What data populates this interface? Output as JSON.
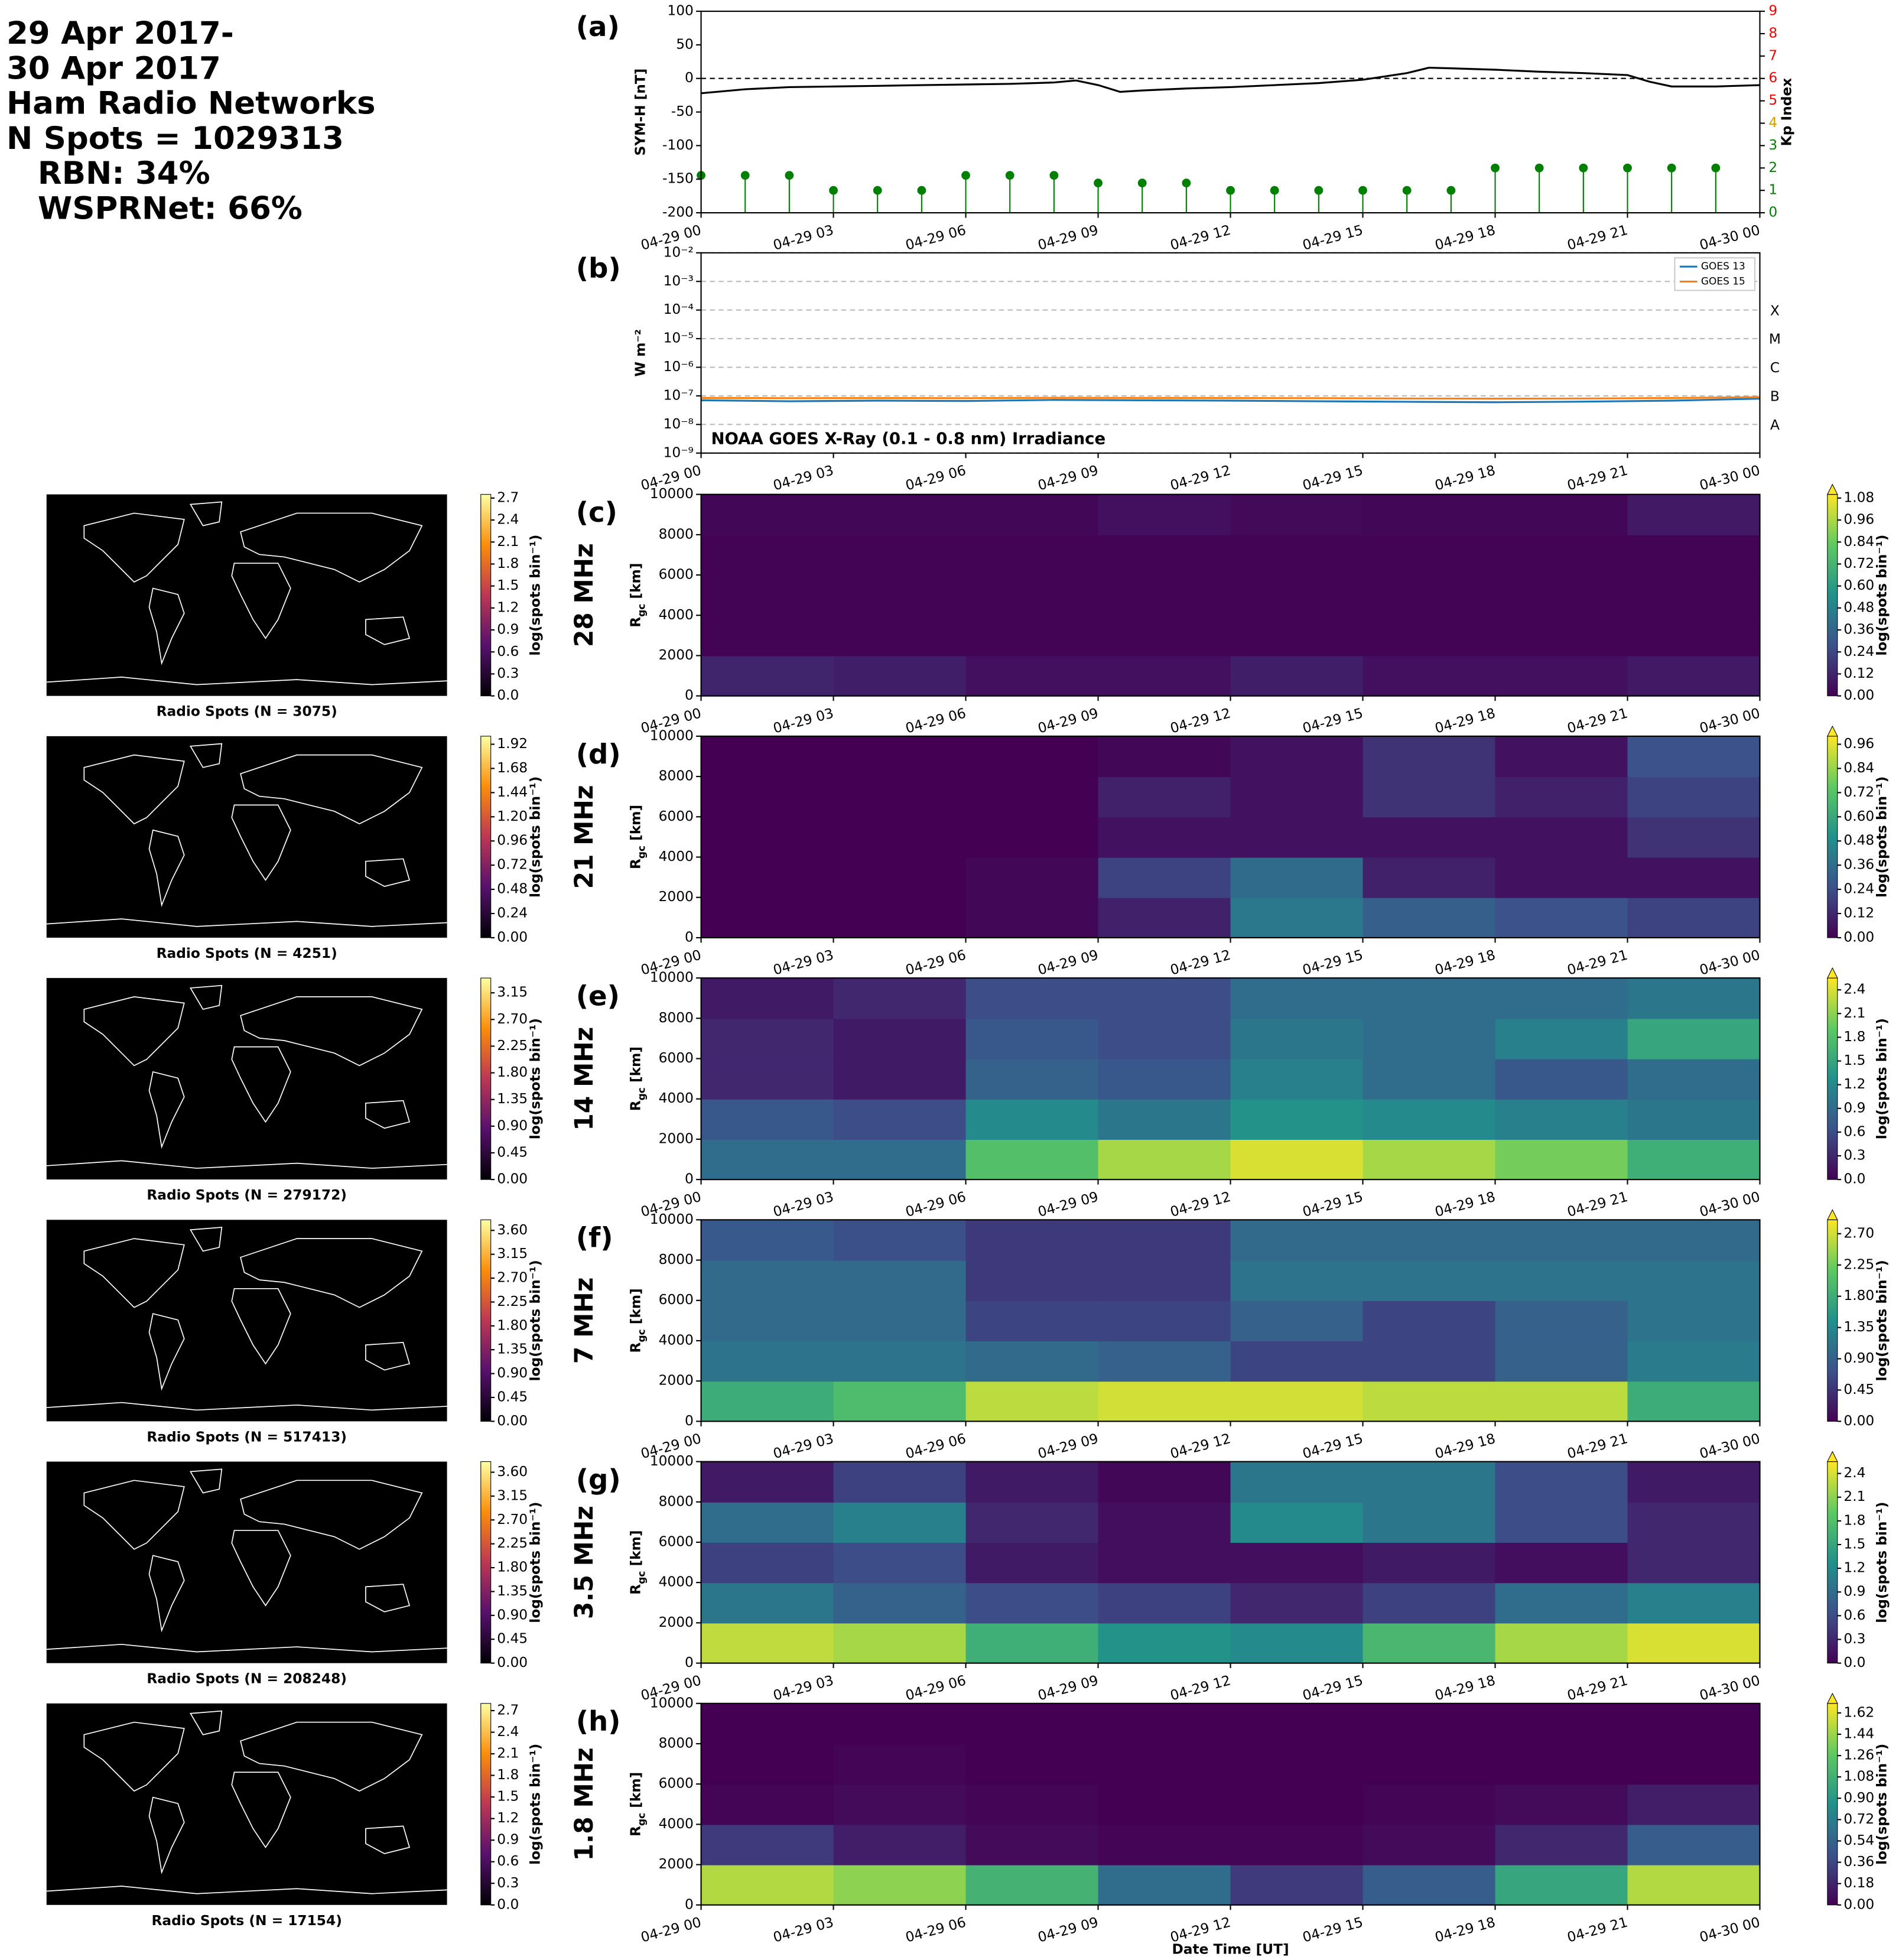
{
  "title_lines": [
    "29 Apr 2017-",
    "30 Apr 2017",
    "Ham Radio Networks",
    "N Spots = 1029313",
    "RBN: 34%",
    "WSPRNet: 66%"
  ],
  "time_axis": {
    "xlim": [
      0,
      24
    ],
    "xticks": [
      {
        "value": 0,
        "label": "04-29 00"
      },
      {
        "value": 3,
        "label": "04-29 03"
      },
      {
        "value": 6,
        "label": "04-29 06"
      },
      {
        "value": 9,
        "label": "04-29 09"
      },
      {
        "value": 12,
        "label": "04-29 12"
      },
      {
        "value": 15,
        "label": "04-29 15"
      },
      {
        "value": 18,
        "label": "04-29 18"
      },
      {
        "value": 21,
        "label": "04-29 21"
      },
      {
        "value": 24,
        "label": "04-30 00"
      }
    ]
  },
  "chart_data": [
    {
      "type": "line",
      "panel_label": "(a)",
      "ylabel": "SYM-H [nT]",
      "y2label": "Kp Index",
      "ylim": [
        -200,
        100
      ],
      "yticks": [
        -200,
        -150,
        -100,
        -50,
        0,
        50,
        100
      ],
      "y2lim": [
        0,
        9
      ],
      "y2ticks": [
        0,
        1,
        2,
        3,
        4,
        5,
        6,
        7,
        8,
        9
      ],
      "y2tick_colors": [
        "#008000",
        "#008000",
        "#008000",
        "#008000",
        "#d4a000",
        "#ff0000",
        "#ff0000",
        "#ff0000",
        "#ff0000",
        "#ff0000"
      ],
      "hline": 0,
      "series": [
        {
          "color": "#000000",
          "x": [
            0,
            1,
            2,
            3,
            4,
            5,
            6,
            7,
            8,
            8.5,
            9,
            9.5,
            10,
            11,
            12,
            13,
            14,
            15,
            16,
            16.5,
            17,
            18,
            19,
            20,
            21,
            21.5,
            22,
            23,
            24
          ],
          "values": [
            -22,
            -16,
            -13,
            -12,
            -11,
            -10,
            -9,
            -8,
            -6,
            -3,
            -10,
            -20,
            -18,
            -15,
            -13,
            -10,
            -7,
            -2,
            8,
            16,
            15,
            13,
            10,
            8,
            5,
            -5,
            -12,
            -12,
            -10
          ]
        },
        {
          "type": "stem",
          "axis": "y2",
          "color": "#008000",
          "x": [
            0,
            1,
            2,
            3,
            4,
            5,
            6,
            7,
            8,
            9,
            10,
            11,
            12,
            13,
            14,
            15,
            16,
            17,
            18,
            19,
            20,
            21,
            22,
            23
          ],
          "values": [
            1.67,
            1.67,
            1.67,
            1,
            1,
            1,
            1.67,
            1.67,
            1.67,
            1.33,
            1.33,
            1.33,
            1,
            1,
            1,
            1,
            1,
            1,
            2,
            2,
            2,
            2,
            2,
            2
          ]
        }
      ]
    },
    {
      "type": "line",
      "panel_label": "(b)",
      "ylabel": "W m⁻²",
      "log_scale": true,
      "grid": true,
      "legend": "upper right",
      "ylim": [
        1e-09,
        0.01
      ],
      "yticks": [
        {
          "value": 1e-09,
          "label": "10⁻⁹"
        },
        {
          "value": 1e-08,
          "label": "10⁻⁸"
        },
        {
          "value": 1e-07,
          "label": "10⁻⁷"
        },
        {
          "value": 1e-06,
          "label": "10⁻⁶"
        },
        {
          "value": 1e-05,
          "label": "10⁻⁵"
        },
        {
          "value": 0.0001,
          "label": "10⁻⁴"
        },
        {
          "value": 0.001,
          "label": "10⁻³"
        },
        {
          "value": 0.01,
          "label": "10⁻²"
        }
      ],
      "flare_classes": [
        {
          "value": 0.0001,
          "label": "X"
        },
        {
          "value": 1e-05,
          "label": "M"
        },
        {
          "value": 1e-06,
          "label": "C"
        },
        {
          "value": 1e-07,
          "label": "B"
        },
        {
          "value": 1e-08,
          "label": "A"
        }
      ],
      "annotation": "NOAA GOES X-Ray (0.1 - 0.8 nm) Irradiance",
      "series": [
        {
          "name": "GOES 13",
          "color": "#1f77b4",
          "x": [
            0,
            2,
            4,
            6,
            8,
            10,
            12,
            14,
            16,
            18,
            20,
            22,
            24
          ],
          "values": [
            7e-08,
            6.5e-08,
            6.8e-08,
            6.6e-08,
            7.2e-08,
            7e-08,
            6.8e-08,
            6.5e-08,
            6.2e-08,
            6e-08,
            6.3e-08,
            6.8e-08,
            8e-08
          ]
        },
        {
          "name": "GOES 15",
          "color": "#ff7f0e",
          "x": [
            0,
            2,
            4,
            6,
            8,
            10,
            12,
            14,
            16,
            18,
            20,
            22,
            24
          ],
          "values": [
            8.5e-08,
            8.3e-08,
            8.4e-08,
            8.3e-08,
            8.6e-08,
            8.5e-08,
            8.4e-08,
            8.3e-08,
            8.1e-08,
            8e-08,
            8.1e-08,
            8.4e-08,
            9e-08
          ]
        }
      ]
    },
    {
      "type": "heatmap",
      "panel_label": "(c)",
      "band": "28 MHz",
      "ylabel": [
        "R",
        "gc",
        " [km]"
      ],
      "ylim": [
        0,
        10000
      ],
      "yticks": [
        0,
        2000,
        4000,
        6000,
        8000,
        10000
      ],
      "colormap": [
        "#440154",
        "#3b528b",
        "#21918c",
        "#5ec962",
        "#fde725"
      ],
      "extend": "max",
      "clim": [
        0,
        1.1
      ],
      "clabel": "log(spots bin⁻¹)",
      "cticks": [
        {
          "value": 0,
          "label": "0.00"
        },
        0.12,
        0.24,
        0.36,
        0.48,
        {
          "value": 0.6,
          "label": "0.60"
        },
        0.72,
        0.84,
        0.96,
        1.08
      ],
      "z": [
        [
          0.12,
          0.1,
          0.05,
          0.05,
          0.1,
          0.05,
          0.05,
          0.08
        ],
        [
          0.01,
          0.01,
          0.01,
          0.01,
          0.01,
          0.01,
          0.01,
          0.01
        ],
        [
          0.01,
          0.01,
          0.01,
          0.01,
          0.01,
          0.01,
          0.01,
          0.01
        ],
        [
          0.01,
          0.01,
          0.01,
          0.01,
          0.01,
          0.01,
          0.01,
          0.01
        ],
        [
          0.02,
          0.02,
          0.02,
          0.05,
          0.03,
          0.02,
          0.02,
          0.08
        ]
      ],
      "map": {
        "title": "Radio Spots (N = 3075)",
        "colormap": [
          "#000004",
          "#57106e",
          "#bc3754",
          "#f98e09",
          "#fcffa4"
        ],
        "clim": [
          0,
          2.75
        ],
        "clabel": "log(spots bin⁻¹)",
        "cticks": [
          {
            "value": 0,
            "label": "0.0"
          },
          0.3,
          0.6,
          0.9,
          1.2,
          1.5,
          1.8,
          2.1,
          2.4,
          2.7
        ]
      }
    },
    {
      "type": "heatmap",
      "panel_label": "(d)",
      "band": "21 MHz",
      "ylabel": [
        "R",
        "gc",
        " [km]"
      ],
      "ylim": [
        0,
        10000
      ],
      "yticks": [
        0,
        2000,
        4000,
        6000,
        8000,
        10000
      ],
      "colormap": [
        "#440154",
        "#3b528b",
        "#21918c",
        "#5ec962",
        "#fde725"
      ],
      "extend": "max",
      "clim": [
        0,
        1.0
      ],
      "clabel": "log(spots bin⁻¹)",
      "cticks": [
        {
          "value": 0,
          "label": "0.00"
        },
        0.12,
        0.24,
        0.36,
        0.48,
        {
          "value": 0.6,
          "label": "0.60"
        },
        0.72,
        0.84,
        0.96
      ],
      "z": [
        [
          0,
          0,
          0.02,
          0.1,
          0.4,
          0.3,
          0.25,
          0.2
        ],
        [
          0,
          0,
          0.02,
          0.2,
          0.35,
          0.1,
          0.05,
          0.05
        ],
        [
          0,
          0,
          0,
          0.05,
          0.05,
          0.05,
          0.05,
          0.15
        ],
        [
          0,
          0,
          0,
          0.1,
          0.05,
          0.15,
          0.1,
          0.2
        ],
        [
          0,
          0,
          0,
          0.02,
          0.05,
          0.15,
          0.05,
          0.25
        ]
      ],
      "map": {
        "title": "Radio Spots (N = 4251)",
        "colormap": [
          "#000004",
          "#57106e",
          "#bc3754",
          "#f98e09",
          "#fcffa4"
        ],
        "clim": [
          0,
          2.0
        ],
        "clabel": "log(spots bin⁻¹)",
        "cticks": [
          {
            "value": 0,
            "label": "0.00"
          },
          0.24,
          0.48,
          0.72,
          0.96,
          {
            "value": 1.2,
            "label": "1.20"
          },
          1.44,
          1.68,
          1.92
        ]
      }
    },
    {
      "type": "heatmap",
      "panel_label": "(e)",
      "band": "14 MHz",
      "ylabel": [
        "R",
        "gc",
        " [km]"
      ],
      "ylim": [
        0,
        10000
      ],
      "yticks": [
        0,
        2000,
        4000,
        6000,
        8000,
        10000
      ],
      "colormap": [
        "#440154",
        "#3b528b",
        "#21918c",
        "#5ec962",
        "#fde725"
      ],
      "extend": "max",
      "clim": [
        0,
        2.55
      ],
      "clabel": "log(spots bin⁻¹)",
      "cticks": [
        {
          "value": 0,
          "label": "0.0"
        },
        0.3,
        0.6,
        0.9,
        1.2,
        1.5,
        1.8,
        2.1,
        2.4
      ],
      "z": [
        [
          0.9,
          0.9,
          1.8,
          2.2,
          2.4,
          2.2,
          2.0,
          1.6
        ],
        [
          0.7,
          0.6,
          1.2,
          1.0,
          1.3,
          1.2,
          1.1,
          1.0
        ],
        [
          0.3,
          0.2,
          0.8,
          0.7,
          1.1,
          0.9,
          0.7,
          0.9
        ],
        [
          0.3,
          0.2,
          0.7,
          0.6,
          1.0,
          0.9,
          1.1,
          1.5
        ],
        [
          0.2,
          0.3,
          0.6,
          0.6,
          0.9,
          0.9,
          0.9,
          1.0
        ]
      ],
      "map": {
        "title": "Radio Spots (N = 279172)",
        "colormap": [
          "#000004",
          "#57106e",
          "#bc3754",
          "#f98e09",
          "#fcffa4"
        ],
        "clim": [
          0,
          3.4
        ],
        "clabel": "log(spots bin⁻¹)",
        "cticks": [
          {
            "value": 0,
            "label": "0.00"
          },
          0.45,
          {
            "value": 0.9,
            "label": "0.90"
          },
          1.35,
          {
            "value": 1.8,
            "label": "1.80"
          },
          2.25,
          {
            "value": 2.7,
            "label": "2.70"
          },
          3.15
        ]
      }
    },
    {
      "type": "heatmap",
      "panel_label": "(f)",
      "band": "7 MHz",
      "ylabel": [
        "R",
        "gc",
        " [km]"
      ],
      "ylim": [
        0,
        10000
      ],
      "yticks": [
        0,
        2000,
        4000,
        6000,
        8000,
        10000
      ],
      "colormap": [
        "#440154",
        "#3b528b",
        "#21918c",
        "#5ec962",
        "#fde725"
      ],
      "extend": "max",
      "clim": [
        0,
        2.9
      ],
      "clabel": "log(spots bin⁻¹)",
      "cticks": [
        {
          "value": 0,
          "label": "0.00"
        },
        0.45,
        {
          "value": 0.9,
          "label": "0.90"
        },
        1.35,
        {
          "value": 1.8,
          "label": "1.80"
        },
        2.25,
        {
          "value": 2.7,
          "label": "2.70"
        }
      ],
      "z": [
        [
          1.8,
          2.0,
          2.6,
          2.7,
          2.7,
          2.6,
          2.6,
          1.8
        ],
        [
          1.1,
          1.1,
          1.0,
          0.9,
          0.6,
          0.6,
          0.9,
          1.2
        ],
        [
          1.0,
          1.0,
          0.6,
          0.6,
          0.9,
          0.6,
          0.9,
          1.1
        ],
        [
          1.0,
          1.0,
          0.5,
          0.5,
          1.1,
          1.1,
          1.1,
          1.1
        ],
        [
          0.8,
          0.7,
          0.5,
          0.5,
          1.0,
          1.0,
          1.0,
          1.0
        ]
      ],
      "map": {
        "title": "Radio Spots (N = 517413)",
        "colormap": [
          "#000004",
          "#57106e",
          "#bc3754",
          "#f98e09",
          "#fcffa4"
        ],
        "clim": [
          0,
          3.8
        ],
        "clabel": "log(spots bin⁻¹)",
        "cticks": [
          {
            "value": 0,
            "label": "0.00"
          },
          0.45,
          {
            "value": 0.9,
            "label": "0.90"
          },
          1.35,
          {
            "value": 1.8,
            "label": "1.80"
          },
          2.25,
          {
            "value": 2.7,
            "label": "2.70"
          },
          3.15,
          {
            "value": 3.6,
            "label": "3.60"
          }
        ]
      }
    },
    {
      "type": "heatmap",
      "panel_label": "(g)",
      "band": "3.5 MHz",
      "ylabel": [
        "R",
        "gc",
        " [km]"
      ],
      "ylim": [
        0,
        10000
      ],
      "yticks": [
        0,
        2000,
        4000,
        6000,
        8000,
        10000
      ],
      "colormap": [
        "#440154",
        "#3b528b",
        "#21918c",
        "#5ec962",
        "#fde725"
      ],
      "extend": "max",
      "clim": [
        0,
        2.55
      ],
      "clabel": "log(spots bin⁻¹)",
      "cticks": [
        {
          "value": 0,
          "label": "0.0"
        },
        0.3,
        0.6,
        0.9,
        1.2,
        1.5,
        1.8,
        2.1,
        2.4
      ],
      "z": [
        [
          2.3,
          2.2,
          1.6,
          1.3,
          1.2,
          1.7,
          2.2,
          2.4
        ],
        [
          1.0,
          0.8,
          0.6,
          0.5,
          0.3,
          0.5,
          0.9,
          1.1
        ],
        [
          0.5,
          0.6,
          0.2,
          0.1,
          0.1,
          0.2,
          0.1,
          0.3
        ],
        [
          0.9,
          1.1,
          0.3,
          0.1,
          1.2,
          1.0,
          0.6,
          0.3
        ],
        [
          0.2,
          0.5,
          0.2,
          0.05,
          1.0,
          1.0,
          0.6,
          0.2
        ]
      ],
      "map": {
        "title": "Radio Spots (N = 208248)",
        "colormap": [
          "#000004",
          "#57106e",
          "#bc3754",
          "#f98e09",
          "#fcffa4"
        ],
        "clim": [
          0,
          3.8
        ],
        "clabel": "log(spots bin⁻¹)",
        "cticks": [
          {
            "value": 0,
            "label": "0.00"
          },
          0.45,
          {
            "value": 0.9,
            "label": "0.90"
          },
          1.35,
          {
            "value": 1.8,
            "label": "1.80"
          },
          2.25,
          {
            "value": 2.7,
            "label": "2.70"
          },
          3.15,
          {
            "value": 3.6,
            "label": "3.60"
          }
        ]
      }
    },
    {
      "type": "heatmap",
      "panel_label": "(h)",
      "band": "1.8 MHz",
      "ylabel": [
        "R",
        "gc",
        " [km]"
      ],
      "xlabel": "Date Time [UT]",
      "ylim": [
        0,
        10000
      ],
      "yticks": [
        0,
        2000,
        4000,
        6000,
        8000,
        10000
      ],
      "colormap": [
        "#440154",
        "#3b528b",
        "#21918c",
        "#5ec962",
        "#fde725"
      ],
      "extend": "max",
      "clim": [
        0,
        1.7
      ],
      "clabel": "log(spots bin⁻¹)",
      "cticks": [
        {
          "value": 0,
          "label": "0.00"
        },
        0.18,
        0.36,
        0.54,
        0.72,
        {
          "value": 0.9,
          "label": "0.90"
        },
        1.08,
        1.26,
        1.44,
        1.62
      ],
      "z": [
        [
          1.5,
          1.4,
          1.1,
          0.6,
          0.3,
          0.5,
          1.0,
          1.5
        ],
        [
          0.3,
          0.15,
          0.05,
          0.02,
          0.02,
          0.05,
          0.2,
          0.5
        ],
        [
          0.02,
          0.05,
          0.02,
          0,
          0,
          0.02,
          0.05,
          0.15
        ],
        [
          0,
          0.02,
          0,
          0,
          0,
          0,
          0,
          0
        ],
        [
          0,
          0,
          0,
          0,
          0,
          0,
          0,
          0
        ]
      ],
      "map": {
        "title": "Radio Spots (N = 17154)",
        "colormap": [
          "#000004",
          "#57106e",
          "#bc3754",
          "#f98e09",
          "#fcffa4"
        ],
        "clim": [
          0,
          2.8
        ],
        "clabel": "log(spots bin⁻¹)",
        "cticks": [
          {
            "value": 0,
            "label": "0.0"
          },
          0.3,
          0.6,
          0.9,
          1.2,
          1.5,
          1.8,
          2.1,
          2.4,
          2.7
        ]
      }
    }
  ]
}
